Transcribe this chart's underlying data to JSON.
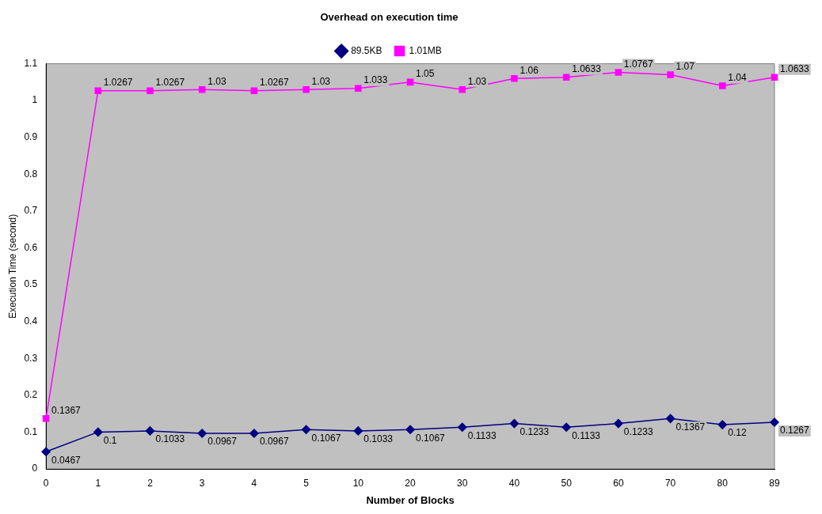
{
  "chart_data": {
    "type": "line",
    "title": "Overhead on execution time",
    "xlabel": "Number of Blocks",
    "ylabel": "Execution Time (second)",
    "categories": [
      "0",
      "1",
      "2",
      "3",
      "4",
      "5",
      "10",
      "20",
      "30",
      "40",
      "50",
      "60",
      "70",
      "80",
      "89"
    ],
    "series": [
      {
        "name": "89.5KB",
        "color": "#000080",
        "marker": "diamond",
        "values": [
          0.0467,
          0.1,
          0.1033,
          0.0967,
          0.0967,
          0.1067,
          0.1033,
          0.1067,
          0.1133,
          0.1233,
          0.1133,
          0.1233,
          0.1367,
          0.12,
          0.1267
        ]
      },
      {
        "name": "1.01MB",
        "color": "#ff00ff",
        "marker": "square",
        "values": [
          0.1367,
          1.0267,
          1.0267,
          1.03,
          1.0267,
          1.03,
          1.033,
          1.05,
          1.03,
          1.06,
          1.0633,
          1.0767,
          1.07,
          1.04,
          1.0633
        ]
      }
    ],
    "ylim": [
      0,
      1.1
    ],
    "yticks": [
      0,
      0.1,
      0.2,
      0.3,
      0.4,
      0.5,
      0.6,
      0.7,
      0.8,
      0.9,
      1,
      1.1
    ],
    "grid": false,
    "legend": "top",
    "data_labels": true,
    "line_style": "solid"
  }
}
